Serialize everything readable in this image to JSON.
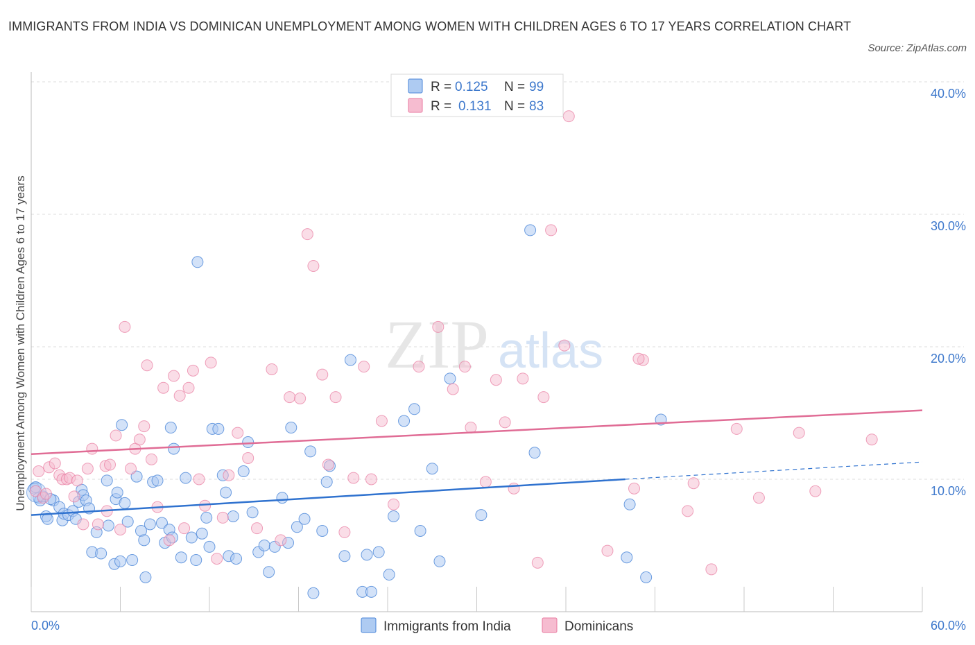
{
  "header": {
    "title": "IMMIGRANTS FROM INDIA VS DOMINICAN UNEMPLOYMENT AMONG WOMEN WITH CHILDREN AGES 6 TO 17 YEARS CORRELATION CHART",
    "source": "Source: ZipAtlas.com"
  },
  "colors": {
    "india": "#4a86d8",
    "india_fill": "#aecbf2",
    "india_line": "#2f72cf",
    "dominican": "#e87aa0",
    "dominican_fill": "#f6bcd0",
    "dominican_line": "#e06c95",
    "value_blue": "#3d78cc",
    "grid": "#dcdcdc"
  },
  "legend": {
    "r_label": "R =",
    "n_label": "N =",
    "india_r": "0.125",
    "india_n": "99",
    "dominican_r": "0.131",
    "dominican_n": "83"
  },
  "watermark": {
    "zip": "ZIP",
    "atlas": "atlas"
  },
  "chart_data": {
    "type": "scatter",
    "xlabel": "",
    "ylabel": "Unemployment Among Women with Children Ages 6 to 17 years",
    "xlim": [
      0,
      60
    ],
    "ylim": [
      0,
      40
    ],
    "x_tick_labels": [
      "0.0%",
      "60.0%"
    ],
    "y_ticks": [
      10,
      20,
      30,
      40
    ],
    "y_tick_labels": [
      "10.0%",
      "20.0%",
      "30.0%",
      "40.0%"
    ],
    "grid": true,
    "legend_position": "top-center",
    "series": [
      {
        "name": "Immigrants from India",
        "R": 0.125,
        "N": 99,
        "trend": {
          "x_start": 0,
          "y_start": 7.3,
          "x_end": 40,
          "y_end": 10.0,
          "dashed_to_x": 60,
          "dashed_to_y": 11.3
        },
        "points": [
          [
            0.2,
            9.3
          ],
          [
            0.5,
            8.6
          ],
          [
            0.6,
            8.4
          ],
          [
            0.8,
            8.7
          ],
          [
            1.0,
            7.2
          ],
          [
            1.1,
            7.0
          ],
          [
            1.5,
            8.4
          ],
          [
            1.9,
            7.9
          ],
          [
            2.1,
            6.9
          ],
          [
            2.2,
            7.4
          ],
          [
            2.5,
            7.3
          ],
          [
            2.8,
            7.6
          ],
          [
            3.0,
            7.0
          ],
          [
            3.2,
            8.3
          ],
          [
            3.4,
            9.2
          ],
          [
            3.5,
            8.8
          ],
          [
            3.7,
            8.4
          ],
          [
            3.9,
            7.8
          ],
          [
            4.1,
            4.5
          ],
          [
            4.4,
            6.0
          ],
          [
            4.7,
            4.4
          ],
          [
            5.1,
            9.9
          ],
          [
            5.2,
            6.5
          ],
          [
            5.6,
            3.6
          ],
          [
            5.7,
            8.5
          ],
          [
            5.8,
            9.0
          ],
          [
            6.1,
            14.1
          ],
          [
            6.3,
            8.2
          ],
          [
            6.5,
            6.8
          ],
          [
            6.8,
            3.9
          ],
          [
            7.1,
            10.2
          ],
          [
            7.4,
            6.1
          ],
          [
            7.6,
            5.4
          ],
          [
            7.7,
            2.6
          ],
          [
            8.0,
            6.6
          ],
          [
            8.2,
            9.8
          ],
          [
            8.5,
            9.9
          ],
          [
            8.8,
            6.7
          ],
          [
            9.0,
            5.2
          ],
          [
            9.3,
            6.2
          ],
          [
            9.4,
            13.9
          ],
          [
            9.5,
            5.6
          ],
          [
            9.6,
            12.3
          ],
          [
            10.1,
            4.1
          ],
          [
            10.4,
            10.1
          ],
          [
            10.8,
            5.6
          ],
          [
            11.1,
            3.9
          ],
          [
            11.5,
            5.9
          ],
          [
            11.8,
            7.1
          ],
          [
            11.2,
            26.4
          ],
          [
            12.0,
            4.9
          ],
          [
            12.2,
            13.8
          ],
          [
            12.6,
            13.8
          ],
          [
            12.9,
            10.3
          ],
          [
            13.3,
            4.2
          ],
          [
            13.6,
            7.2
          ],
          [
            13.8,
            4.0
          ],
          [
            14.3,
            10.6
          ],
          [
            14.6,
            12.8
          ],
          [
            14.9,
            7.5
          ],
          [
            15.3,
            4.5
          ],
          [
            15.7,
            5.0
          ],
          [
            16.0,
            3.0
          ],
          [
            16.4,
            4.9
          ],
          [
            16.9,
            8.6
          ],
          [
            17.3,
            5.2
          ],
          [
            17.5,
            13.9
          ],
          [
            17.9,
            6.4
          ],
          [
            18.4,
            7.0
          ],
          [
            18.8,
            12.1
          ],
          [
            19.0,
            1.4
          ],
          [
            19.6,
            6.1
          ],
          [
            19.9,
            9.8
          ],
          [
            20.1,
            11.0
          ],
          [
            21.1,
            4.2
          ],
          [
            21.5,
            19.0
          ],
          [
            22.3,
            1.5
          ],
          [
            22.6,
            4.3
          ],
          [
            22.9,
            1.5
          ],
          [
            23.4,
            4.5
          ],
          [
            24.1,
            2.8
          ],
          [
            24.4,
            7.2
          ],
          [
            25.1,
            14.4
          ],
          [
            25.8,
            15.3
          ],
          [
            26.2,
            6.1
          ],
          [
            27.0,
            10.8
          ],
          [
            27.5,
            3.8
          ],
          [
            28.2,
            17.6
          ],
          [
            30.3,
            7.3
          ],
          [
            33.6,
            28.8
          ],
          [
            33.9,
            12.0
          ],
          [
            40.1,
            4.1
          ],
          [
            40.3,
            8.1
          ],
          [
            41.4,
            2.6
          ],
          [
            42.4,
            14.5
          ],
          [
            0.3,
            9.4
          ],
          [
            1.3,
            8.5
          ],
          [
            6.0,
            3.8
          ],
          [
            13.1,
            9.0
          ]
        ]
      },
      {
        "name": "Dominicans",
        "R": 0.131,
        "N": 83,
        "trend": {
          "x_start": 0,
          "y_start": 11.9,
          "x_end": 60,
          "y_end": 15.2
        },
        "points": [
          [
            0.3,
            9.1
          ],
          [
            0.5,
            10.6
          ],
          [
            0.8,
            8.6
          ],
          [
            1.0,
            8.9
          ],
          [
            1.2,
            10.9
          ],
          [
            1.6,
            11.2
          ],
          [
            1.9,
            10.3
          ],
          [
            2.1,
            10.0
          ],
          [
            2.4,
            10.0
          ],
          [
            2.6,
            10.1
          ],
          [
            2.9,
            8.7
          ],
          [
            3.1,
            9.9
          ],
          [
            3.5,
            6.6
          ],
          [
            3.8,
            10.8
          ],
          [
            4.1,
            12.3
          ],
          [
            4.5,
            6.6
          ],
          [
            5.0,
            11.0
          ],
          [
            5.1,
            7.6
          ],
          [
            5.3,
            11.1
          ],
          [
            5.7,
            13.3
          ],
          [
            6.0,
            6.2
          ],
          [
            6.3,
            21.5
          ],
          [
            6.7,
            10.8
          ],
          [
            7.0,
            12.3
          ],
          [
            7.3,
            13.0
          ],
          [
            7.6,
            14.0
          ],
          [
            7.8,
            18.6
          ],
          [
            8.1,
            11.5
          ],
          [
            8.5,
            7.9
          ],
          [
            8.9,
            16.9
          ],
          [
            9.3,
            5.4
          ],
          [
            9.6,
            17.8
          ],
          [
            10.0,
            16.3
          ],
          [
            10.3,
            6.3
          ],
          [
            10.6,
            16.9
          ],
          [
            10.9,
            18.2
          ],
          [
            11.3,
            10.0
          ],
          [
            11.7,
            8.0
          ],
          [
            12.1,
            18.8
          ],
          [
            12.5,
            4.0
          ],
          [
            12.9,
            7.1
          ],
          [
            13.3,
            10.3
          ],
          [
            13.9,
            13.5
          ],
          [
            14.6,
            11.6
          ],
          [
            15.2,
            6.3
          ],
          [
            16.2,
            18.3
          ],
          [
            16.8,
            5.4
          ],
          [
            17.4,
            16.2
          ],
          [
            18.1,
            16.1
          ],
          [
            18.6,
            28.5
          ],
          [
            19.0,
            26.1
          ],
          [
            19.6,
            17.9
          ],
          [
            20.0,
            11.1
          ],
          [
            20.5,
            16.2
          ],
          [
            21.1,
            6.0
          ],
          [
            21.7,
            10.1
          ],
          [
            22.4,
            18.5
          ],
          [
            22.9,
            10.0
          ],
          [
            23.6,
            14.4
          ],
          [
            24.4,
            8.1
          ],
          [
            26.1,
            18.5
          ],
          [
            27.4,
            21.5
          ],
          [
            28.4,
            16.8
          ],
          [
            29.2,
            18.5
          ],
          [
            29.6,
            13.9
          ],
          [
            30.6,
            9.8
          ],
          [
            31.3,
            17.5
          ],
          [
            31.9,
            14.3
          ],
          [
            32.5,
            9.3
          ],
          [
            33.1,
            17.6
          ],
          [
            34.1,
            3.7
          ],
          [
            34.5,
            16.2
          ],
          [
            35.0,
            28.8
          ],
          [
            35.9,
            20.1
          ],
          [
            36.2,
            37.4
          ],
          [
            38.8,
            4.6
          ],
          [
            40.6,
            9.3
          ],
          [
            41.2,
            19.0
          ],
          [
            44.2,
            7.6
          ],
          [
            44.6,
            9.7
          ],
          [
            45.8,
            3.2
          ],
          [
            47.5,
            13.8
          ],
          [
            49.0,
            8.6
          ]
        ]
      }
    ],
    "extra_points_dominican": [
      [
        51.7,
        13.5
      ],
      [
        52.8,
        9.1
      ],
      [
        56.6,
        13.0
      ],
      [
        40.9,
        19.1
      ]
    ]
  }
}
